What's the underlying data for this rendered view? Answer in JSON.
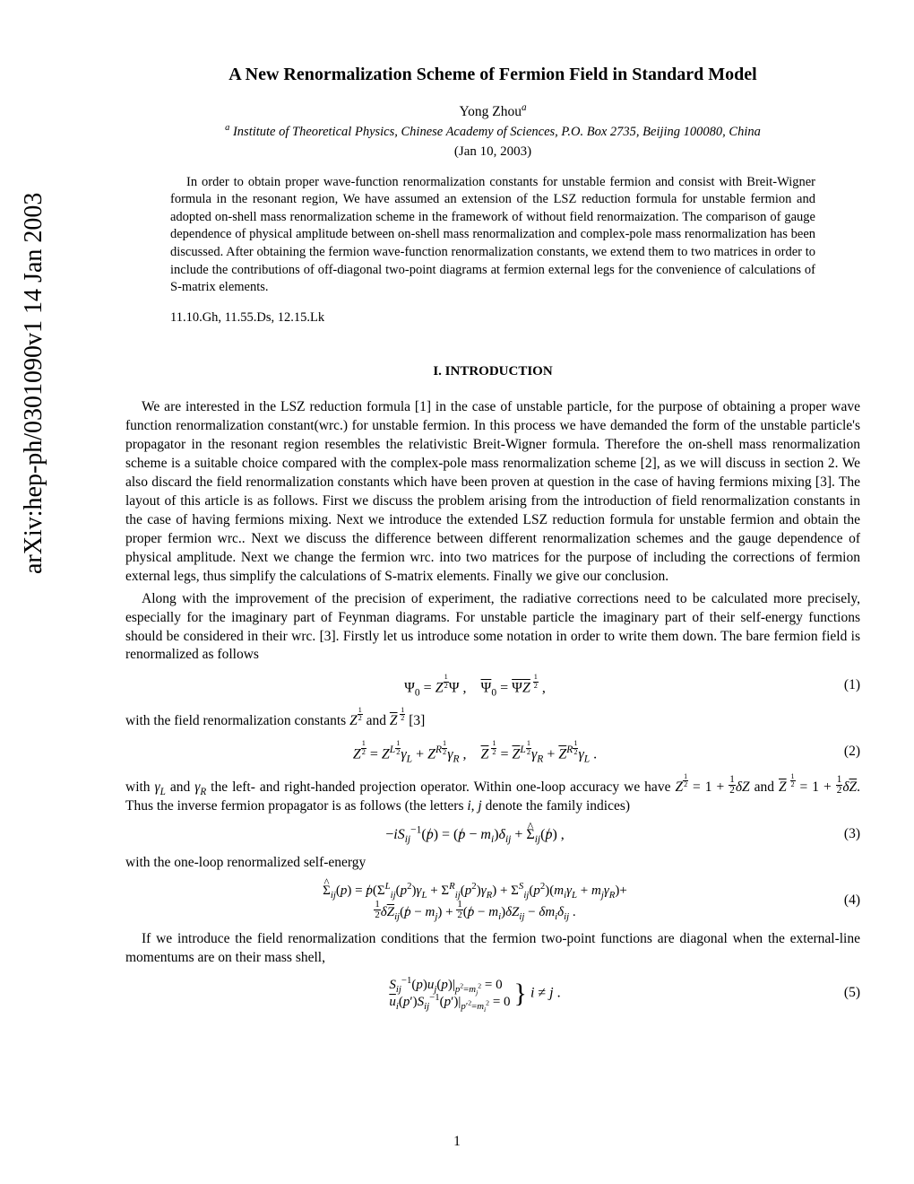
{
  "arxiv": "arXiv:hep-ph/0301090v1  14 Jan 2003",
  "title": "A New Renormalization Scheme of Fermion Field in Standard Model",
  "author": "Yong Zhou",
  "author_sup": "a",
  "affil_sup": "a",
  "affil": " Institute of Theoretical Physics, Chinese Academy of Sciences, P.O. Box 2735, Beijing 100080, China",
  "date": "(Jan 10, 2003)",
  "abstract": "In order to obtain proper wave-function renormalization constants for unstable fermion and consist with Breit-Wigner formula in the resonant region, We have assumed an extension of the LSZ reduction formula for unstable fermion and adopted on-shell mass renormalization scheme in the framework of without field renormaization. The comparison of gauge dependence of physical amplitude between on-shell mass renormalization and complex-pole mass renormalization has been discussed. After obtaining the fermion wave-function renormalization constants, we extend them to two matrices in order to include the contributions of off-diagonal two-point diagrams at fermion external legs for the convenience of calculations of S-matrix elements.",
  "pacs": "11.10.Gh, 11.55.Ds, 12.15.Lk",
  "section1": "I. INTRODUCTION",
  "para1": "We are interested in the LSZ reduction formula [1] in the case of unstable particle, for the purpose of obtaining a proper wave function renormalization constant(wrc.) for unstable fermion. In this process we have demanded the form of the unstable particle's propagator in the resonant region resembles the relativistic Breit-Wigner formula. Therefore the on-shell mass renormalization scheme is a suitable choice compared with the complex-pole mass renormalization scheme [2], as we will discuss in section 2. We also discard the field renormalization constants which have been proven at question in the case of having fermions mixing [3]. The layout of this article is as follows. First we discuss the problem arising from the introduction of field renormalization constants in the case of having fermions mixing. Next we introduce the extended LSZ reduction formula for unstable fermion and obtain the proper fermion wrc.. Next we discuss the difference between different renormalization schemes and the gauge dependence of physical amplitude. Next we change the fermion wrc. into two matrices for the purpose of including the corrections of fermion external legs, thus simplify the calculations of S-matrix elements. Finally we give our conclusion.",
  "para2": "Along with the improvement of the precision of experiment, the radiative corrections need to be calculated more precisely, especially for the imaginary part of Feynman diagrams. For unstable particle the imaginary part of their self-energy functions should be considered in their wrc. [3]. Firstly let us introduce some notation in order to write them down. The bare fermion field is renormalized as follows",
  "para3_pre": "with the field renormalization constants ",
  "para3_post": " [3]",
  "para4_pre": "with ",
  "para4_mid1": " and ",
  "para4_mid2": " the left- and right-handed projection operator. Within one-loop accuracy we have ",
  "para4_mid3": " and ",
  "para4_post": ". Thus the inverse fermion propagator is as follows (the letters ",
  "para4_ij": "i, j",
  "para4_end": " denote the family indices)",
  "para5": "with the one-loop renormalized self-energy",
  "para6": "If we introduce the field renormalization conditions that the fermion two-point functions are diagonal when the external-line momentums are on their mass shell,",
  "eqnum": {
    "1": "(1)",
    "2": "(2)",
    "3": "(3)",
    "4": "(4)",
    "5": "(5)"
  },
  "pagenum": "1",
  "colors": {
    "text": "#000000",
    "bg": "#ffffff"
  },
  "fontsize": {
    "body": 15.5,
    "title": 20,
    "abstract": 14.5,
    "section": 15,
    "eq": 16
  }
}
